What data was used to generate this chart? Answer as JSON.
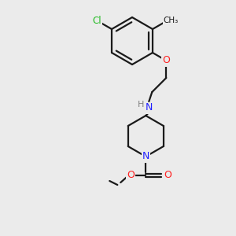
{
  "background_color": "#ebebeb",
  "bond_color": "#1a1a1a",
  "atom_colors": {
    "N": "#2222ff",
    "O": "#ff2020",
    "Cl": "#22bb22",
    "H": "#808080",
    "C": "#1a1a1a"
  },
  "figsize": [
    3.0,
    3.0
  ],
  "dpi": 100
}
